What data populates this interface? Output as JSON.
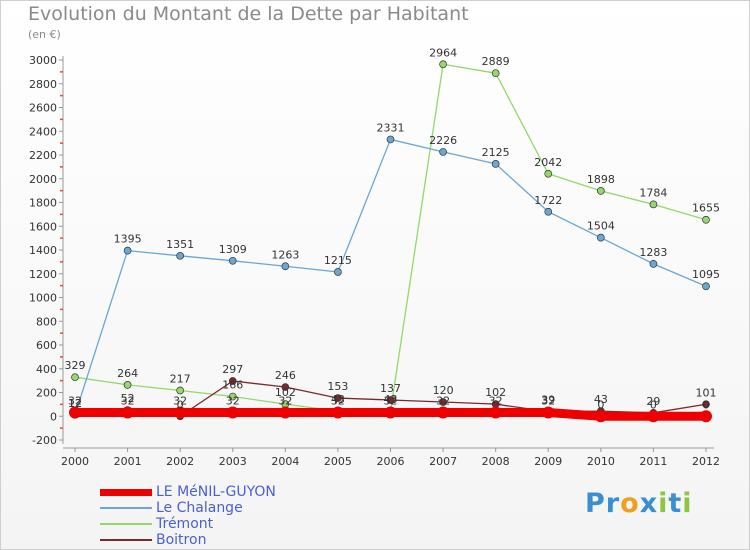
{
  "title": "Evolution du Montant de la Dette par Habitant",
  "unit_label": "(en €)",
  "logo": {
    "letters": [
      {
        "ch": "P",
        "color": "#3a8fd0"
      },
      {
        "ch": "r",
        "color": "#3a8fd0"
      },
      {
        "ch": "o",
        "color": "#f0a020"
      },
      {
        "ch": "x",
        "color": "#3a8fd0"
      },
      {
        "ch": "i",
        "color": "#8cc63f"
      },
      {
        "ch": "t",
        "color": "#3a8fd0"
      },
      {
        "ch": "i",
        "color": "#8cc63f"
      }
    ]
  },
  "chart_data": {
    "type": "line",
    "title": "Evolution du Montant de la Dette par Habitant",
    "ylabel": "(en €)",
    "x": [
      "2000",
      "2001",
      "2002",
      "2003",
      "2004",
      "2005",
      "2006",
      "2007",
      "2008",
      "2009",
      "2010",
      "2011",
      "2012"
    ],
    "yticks": [
      -200,
      0,
      200,
      400,
      600,
      800,
      1000,
      1200,
      1400,
      1600,
      1800,
      2000,
      2200,
      2400,
      2600,
      2800,
      3000
    ],
    "ylim": [
      -200,
      3000
    ],
    "grid": false,
    "legend": "bottom-left",
    "series": [
      {
        "name": "LE MéNIL-GUYON",
        "color": "#ee0000",
        "values": [
          32,
          32,
          32,
          32,
          32,
          32,
          32,
          32,
          32,
          32,
          0,
          0,
          0
        ]
      },
      {
        "name": "Le Chalange",
        "color": "#6aa6d6",
        "values": [
          12,
          1395,
          1351,
          1309,
          1263,
          1215,
          2331,
          2226,
          2125,
          1722,
          1504,
          1283,
          1095
        ]
      },
      {
        "name": "Trémont",
        "color": "#93d86a",
        "values": [
          329,
          264,
          217,
          166,
          102,
          43,
          43,
          2964,
          2889,
          2042,
          1898,
          1784,
          1655
        ]
      },
      {
        "name": "Boitron",
        "color": "#7a2a2a",
        "values": [
          12,
          52,
          0,
          297,
          246,
          153,
          137,
          120,
          102,
          39,
          43,
          29,
          101
        ]
      }
    ]
  }
}
